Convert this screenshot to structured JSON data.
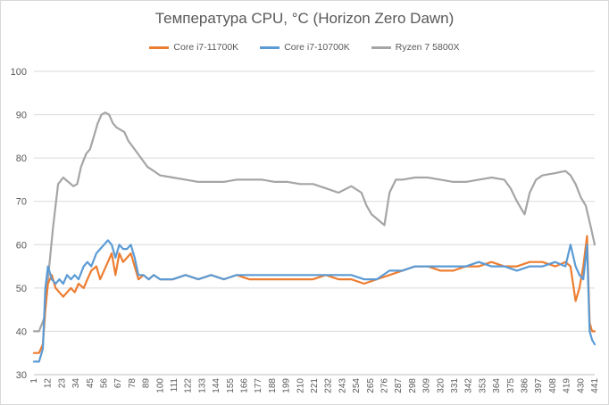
{
  "chart_data": {
    "type": "line",
    "title": "Температура CPU, °C (Horizon Zero Dawn)",
    "xlabel": "",
    "ylabel": "",
    "ylim": [
      30,
      100
    ],
    "yticks": [
      30,
      40,
      50,
      60,
      70,
      80,
      90,
      100
    ],
    "xlim": [
      1,
      441
    ],
    "xticks": [
      1,
      12,
      23,
      34,
      45,
      56,
      67,
      78,
      89,
      100,
      111,
      122,
      133,
      144,
      155,
      166,
      177,
      188,
      199,
      210,
      221,
      232,
      243,
      254,
      265,
      276,
      287,
      298,
      309,
      320,
      331,
      342,
      353,
      364,
      375,
      386,
      397,
      408,
      419,
      430,
      441
    ],
    "grid": "horizontal",
    "legend_position": "top",
    "series": [
      {
        "name": "Core i7-11700K",
        "color": "#ED7D31",
        "points": [
          [
            1,
            35
          ],
          [
            5,
            35
          ],
          [
            8,
            37
          ],
          [
            10,
            45
          ],
          [
            12,
            51
          ],
          [
            15,
            53
          ],
          [
            18,
            50
          ],
          [
            21,
            49
          ],
          [
            24,
            48
          ],
          [
            27,
            49
          ],
          [
            30,
            50
          ],
          [
            33,
            49
          ],
          [
            36,
            51
          ],
          [
            40,
            50
          ],
          [
            43,
            52
          ],
          [
            46,
            54
          ],
          [
            50,
            55
          ],
          [
            53,
            52
          ],
          [
            56,
            54
          ],
          [
            59,
            56
          ],
          [
            62,
            58
          ],
          [
            65,
            53
          ],
          [
            68,
            58
          ],
          [
            71,
            56
          ],
          [
            74,
            57
          ],
          [
            77,
            58
          ],
          [
            80,
            55
          ],
          [
            83,
            52
          ],
          [
            87,
            53
          ],
          [
            91,
            52
          ],
          [
            95,
            53
          ],
          [
            100,
            52
          ],
          [
            110,
            52
          ],
          [
            120,
            53
          ],
          [
            130,
            52
          ],
          [
            140,
            53
          ],
          [
            150,
            52
          ],
          [
            160,
            53
          ],
          [
            170,
            52
          ],
          [
            180,
            52
          ],
          [
            190,
            52
          ],
          [
            200,
            52
          ],
          [
            210,
            52
          ],
          [
            220,
            52
          ],
          [
            230,
            53
          ],
          [
            240,
            52
          ],
          [
            250,
            52
          ],
          [
            260,
            51
          ],
          [
            270,
            52
          ],
          [
            280,
            53
          ],
          [
            290,
            54
          ],
          [
            300,
            55
          ],
          [
            310,
            55
          ],
          [
            320,
            54
          ],
          [
            330,
            54
          ],
          [
            340,
            55
          ],
          [
            350,
            55
          ],
          [
            360,
            56
          ],
          [
            370,
            55
          ],
          [
            380,
            55
          ],
          [
            390,
            56
          ],
          [
            400,
            56
          ],
          [
            410,
            55
          ],
          [
            418,
            56
          ],
          [
            422,
            55
          ],
          [
            426,
            47
          ],
          [
            429,
            50
          ],
          [
            432,
            55
          ],
          [
            435,
            62
          ],
          [
            437,
            42
          ],
          [
            439,
            40
          ],
          [
            441,
            40
          ]
        ]
      },
      {
        "name": "Core i7-10700K",
        "color": "#5B9BD5",
        "points": [
          [
            1,
            33
          ],
          [
            5,
            33
          ],
          [
            8,
            36
          ],
          [
            10,
            50
          ],
          [
            12,
            55
          ],
          [
            15,
            52
          ],
          [
            18,
            51
          ],
          [
            21,
            52
          ],
          [
            24,
            51
          ],
          [
            27,
            53
          ],
          [
            30,
            52
          ],
          [
            33,
            53
          ],
          [
            36,
            52
          ],
          [
            40,
            55
          ],
          [
            43,
            56
          ],
          [
            46,
            55
          ],
          [
            50,
            58
          ],
          [
            53,
            59
          ],
          [
            56,
            60
          ],
          [
            59,
            61
          ],
          [
            62,
            60
          ],
          [
            65,
            57
          ],
          [
            68,
            60
          ],
          [
            71,
            59
          ],
          [
            74,
            59
          ],
          [
            77,
            60
          ],
          [
            80,
            57
          ],
          [
            83,
            53
          ],
          [
            87,
            53
          ],
          [
            91,
            52
          ],
          [
            95,
            53
          ],
          [
            100,
            52
          ],
          [
            110,
            52
          ],
          [
            120,
            53
          ],
          [
            130,
            52
          ],
          [
            140,
            53
          ],
          [
            150,
            52
          ],
          [
            160,
            53
          ],
          [
            170,
            53
          ],
          [
            180,
            53
          ],
          [
            190,
            53
          ],
          [
            200,
            53
          ],
          [
            210,
            53
          ],
          [
            220,
            53
          ],
          [
            230,
            53
          ],
          [
            240,
            53
          ],
          [
            250,
            53
          ],
          [
            260,
            52
          ],
          [
            270,
            52
          ],
          [
            280,
            54
          ],
          [
            290,
            54
          ],
          [
            300,
            55
          ],
          [
            310,
            55
          ],
          [
            320,
            55
          ],
          [
            330,
            55
          ],
          [
            340,
            55
          ],
          [
            350,
            56
          ],
          [
            360,
            55
          ],
          [
            370,
            55
          ],
          [
            380,
            54
          ],
          [
            390,
            55
          ],
          [
            400,
            55
          ],
          [
            410,
            56
          ],
          [
            418,
            55
          ],
          [
            422,
            60
          ],
          [
            426,
            55
          ],
          [
            429,
            53
          ],
          [
            432,
            52
          ],
          [
            435,
            60
          ],
          [
            437,
            40
          ],
          [
            439,
            38
          ],
          [
            441,
            37
          ]
        ]
      },
      {
        "name": "Ryzen 7 5800X",
        "color": "#A5A5A5",
        "points": [
          [
            1,
            40
          ],
          [
            5,
            40
          ],
          [
            9,
            43
          ],
          [
            12,
            52
          ],
          [
            16,
            64
          ],
          [
            20,
            74
          ],
          [
            24,
            75.5
          ],
          [
            28,
            74.5
          ],
          [
            32,
            73.5
          ],
          [
            35,
            74
          ],
          [
            38,
            78
          ],
          [
            42,
            81
          ],
          [
            45,
            82
          ],
          [
            48,
            85
          ],
          [
            51,
            88
          ],
          [
            54,
            90
          ],
          [
            57,
            90.5
          ],
          [
            60,
            90
          ],
          [
            63,
            88
          ],
          [
            66,
            87
          ],
          [
            69,
            86.5
          ],
          [
            72,
            86
          ],
          [
            75,
            84
          ],
          [
            80,
            82
          ],
          [
            85,
            80
          ],
          [
            90,
            78
          ],
          [
            95,
            77
          ],
          [
            100,
            76
          ],
          [
            110,
            75.5
          ],
          [
            120,
            75
          ],
          [
            130,
            74.5
          ],
          [
            140,
            74.5
          ],
          [
            150,
            74.5
          ],
          [
            160,
            75
          ],
          [
            170,
            75
          ],
          [
            180,
            75
          ],
          [
            190,
            74.5
          ],
          [
            200,
            74.5
          ],
          [
            210,
            74
          ],
          [
            220,
            74
          ],
          [
            230,
            73
          ],
          [
            240,
            72
          ],
          [
            250,
            73.5
          ],
          [
            258,
            72
          ],
          [
            262,
            69
          ],
          [
            266,
            67
          ],
          [
            270,
            66
          ],
          [
            274,
            65
          ],
          [
            276,
            64.5
          ],
          [
            280,
            72
          ],
          [
            285,
            75
          ],
          [
            290,
            75
          ],
          [
            300,
            75.5
          ],
          [
            310,
            75.5
          ],
          [
            320,
            75
          ],
          [
            330,
            74.5
          ],
          [
            340,
            74.5
          ],
          [
            350,
            75
          ],
          [
            360,
            75.5
          ],
          [
            370,
            75
          ],
          [
            375,
            73
          ],
          [
            380,
            70
          ],
          [
            386,
            67
          ],
          [
            390,
            72
          ],
          [
            395,
            75
          ],
          [
            400,
            76
          ],
          [
            410,
            76.5
          ],
          [
            418,
            77
          ],
          [
            422,
            76
          ],
          [
            426,
            74
          ],
          [
            430,
            71
          ],
          [
            434,
            69
          ],
          [
            438,
            64
          ],
          [
            441,
            60
          ]
        ]
      }
    ]
  }
}
